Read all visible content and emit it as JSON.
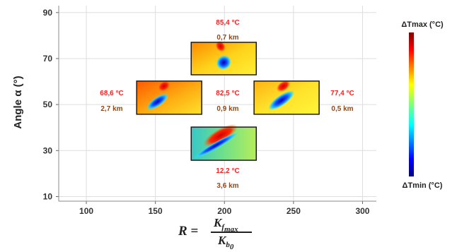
{
  "chart_data": {
    "type": "scatter",
    "title": "",
    "xlabel": "R = K_fmax / K_b0",
    "ylabel": "Angle α (°)",
    "xlim": [
      80,
      310
    ],
    "ylim": [
      8,
      93
    ],
    "xticks": [
      "100",
      "150",
      "200",
      "250",
      "300"
    ],
    "yticks": [
      "10",
      "30",
      "50",
      "70",
      "90"
    ],
    "grid": true,
    "points": [
      {
        "id": "top",
        "x": 200,
        "y": 70,
        "temp": "85,4 °C",
        "dist": "0,7 km"
      },
      {
        "id": "left",
        "x": 160,
        "y": 53,
        "temp": "68,6 °C",
        "dist": "2,7 km"
      },
      {
        "id": "center",
        "x": 200,
        "y": 50,
        "temp": "82,5 °C",
        "dist": "0,9 km"
      },
      {
        "id": "right",
        "x": 245,
        "y": 53,
        "temp": "77,4 °C",
        "dist": "0,5 km"
      },
      {
        "id": "bottom",
        "x": 200,
        "y": 33,
        "temp": "12,2 °C",
        "dist": "3,6 km"
      }
    ],
    "colorbar": {
      "max_label": "ΔTmax (°C)",
      "min_label": "ΔTmin (°C)",
      "colormap": "jet"
    }
  },
  "formula": {
    "lhs": "R =",
    "num_base": "K",
    "num_sub": "f",
    "num_subsub": "max",
    "den_base": "K",
    "den_sub": "b",
    "den_subsub": "0"
  },
  "colors": {
    "temp": "#ff1f1f",
    "dist": "#8c4a1e",
    "grid": "#dddddd"
  }
}
